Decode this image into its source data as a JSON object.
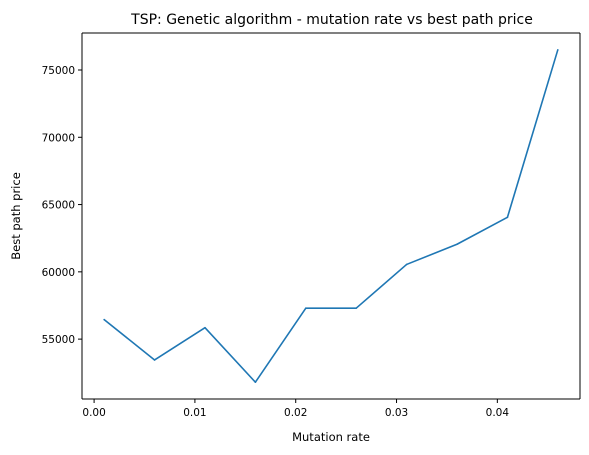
{
  "chart_data": {
    "type": "line",
    "title": "TSP: Genetic algorithm - mutation rate vs best path price",
    "xlabel": "Mutation rate",
    "ylabel": "Best path price",
    "xlim": [
      -0.0012,
      0.0482
    ],
    "ylim": [
      50550,
      77750
    ],
    "xticks": [
      0.0,
      0.01,
      0.02,
      0.03,
      0.04
    ],
    "xtick_labels": [
      "0.00",
      "0.01",
      "0.02",
      "0.03",
      "0.04"
    ],
    "yticks": [
      55000,
      60000,
      65000,
      70000,
      75000
    ],
    "ytick_labels": [
      "55000",
      "60000",
      "65000",
      "70000",
      "75000"
    ],
    "grid": false,
    "series": [
      {
        "color": "#1f77b4",
        "x": [
          0.001,
          0.006,
          0.011,
          0.016,
          0.021,
          0.026,
          0.031,
          0.036,
          0.041,
          0.046
        ],
        "y": [
          56450,
          53450,
          55850,
          51800,
          57300,
          57300,
          60550,
          62050,
          64050,
          76500
        ]
      }
    ]
  }
}
